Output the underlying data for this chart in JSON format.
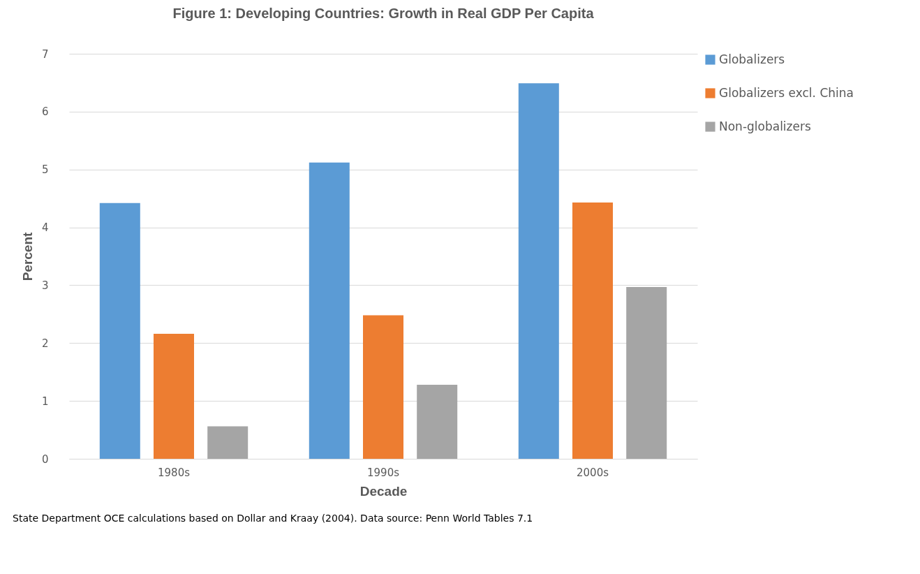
{
  "chart_data": {
    "type": "bar",
    "title": "Figure 1: Developing Countries: Growth in Real GDP Per Capita",
    "xlabel": "Decade",
    "ylabel": "Percent",
    "categories": [
      "1980s",
      "1990s",
      "2000s"
    ],
    "series": [
      {
        "name": "Globalizers",
        "color": "#5b9bd5",
        "values": [
          4.42,
          5.12,
          6.49
        ]
      },
      {
        "name": "Globalizers excl. China",
        "color": "#ed7d31",
        "values": [
          2.16,
          2.48,
          4.43
        ]
      },
      {
        "name": "Non-globalizers",
        "color": "#a5a5a5",
        "values": [
          0.56,
          1.28,
          2.97
        ]
      }
    ],
    "ylim": [
      0,
      7
    ],
    "yticks": [
      0,
      1,
      2,
      3,
      4,
      5,
      6,
      7
    ],
    "grid": "y",
    "legend": "right",
    "annotations": [
      "State Department OCE calculations based on Dollar and Kraay (2004). Data source: Penn World Tables 7.1"
    ]
  }
}
